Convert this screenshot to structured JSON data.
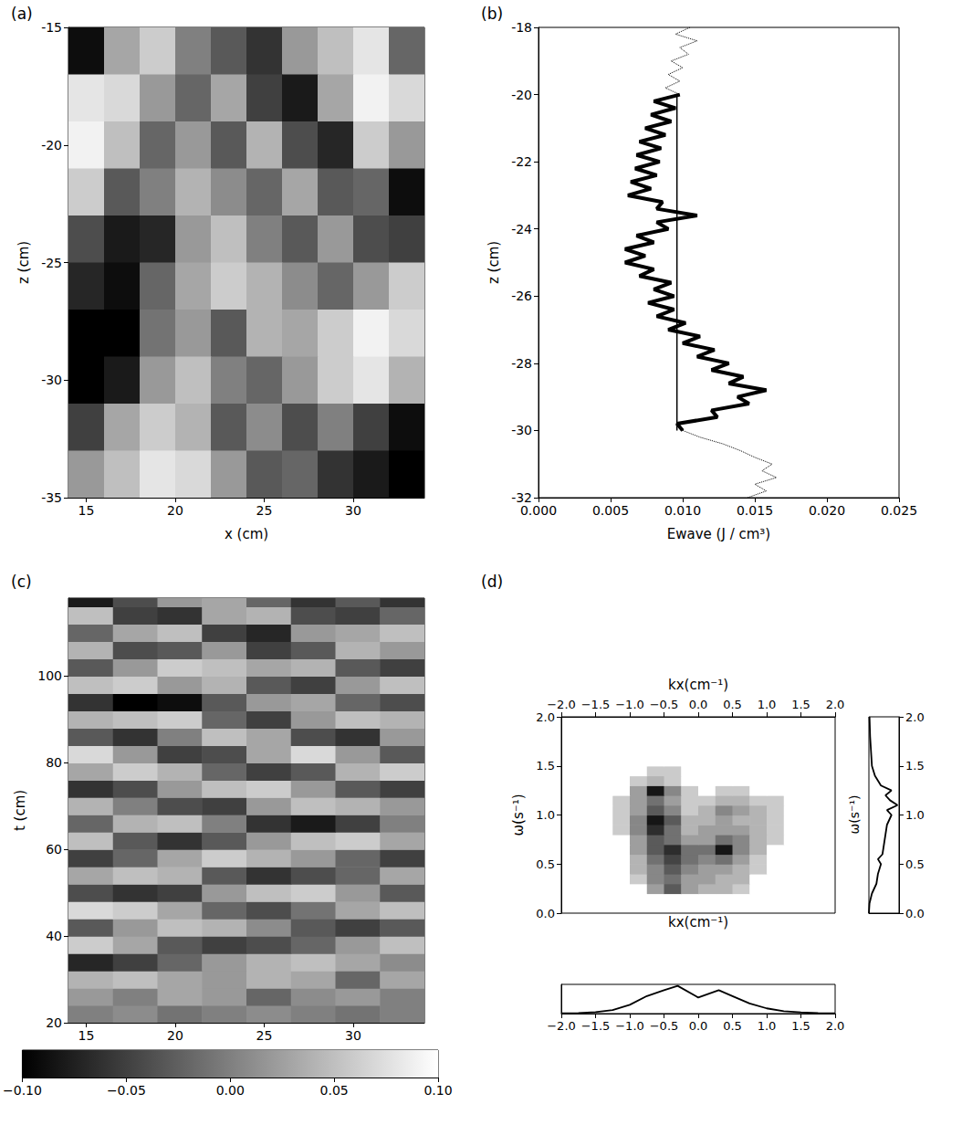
{
  "chart_data": [
    {
      "type": "heatmap",
      "title": "(a)",
      "xlabel": "x (cm)",
      "ylabel": "z (cm)",
      "xlim": [
        14,
        34
      ],
      "ylim": [
        -35,
        -15
      ],
      "xticks": [
        15,
        20,
        25,
        30
      ],
      "yticks": [
        -35,
        -30,
        -25,
        -20,
        -15
      ],
      "zlim": [
        -0.1,
        0.1
      ],
      "x_edges": [
        14,
        16,
        18,
        20,
        22,
        24,
        26,
        28,
        30,
        32,
        34
      ],
      "y_edges": [
        -15,
        -17,
        -19,
        -21,
        -23,
        -25,
        -27,
        -29,
        -31,
        -33,
        -35
      ],
      "values": [
        [
          -0.09,
          0.03,
          0.06,
          0.0,
          -0.03,
          -0.06,
          0.02,
          0.05,
          0.08,
          -0.02
        ],
        [
          0.08,
          0.07,
          0.02,
          -0.02,
          0.03,
          -0.05,
          -0.08,
          0.03,
          0.09,
          0.07
        ],
        [
          0.09,
          0.05,
          -0.02,
          0.02,
          -0.03,
          0.04,
          -0.04,
          -0.07,
          0.06,
          0.02
        ],
        [
          0.06,
          -0.03,
          0.0,
          0.04,
          0.01,
          -0.02,
          0.03,
          -0.03,
          -0.02,
          -0.09
        ],
        [
          -0.04,
          -0.08,
          -0.07,
          0.02,
          0.05,
          0.0,
          -0.03,
          0.02,
          -0.04,
          -0.05
        ],
        [
          -0.07,
          -0.09,
          -0.02,
          0.03,
          0.06,
          0.04,
          0.01,
          -0.02,
          0.02,
          0.06
        ],
        [
          -0.1,
          -0.1,
          -0.01,
          0.02,
          -0.03,
          0.04,
          0.03,
          0.06,
          0.09,
          0.07
        ],
        [
          -0.1,
          -0.08,
          0.02,
          0.05,
          0.0,
          -0.02,
          0.02,
          0.06,
          0.08,
          0.04
        ],
        [
          -0.05,
          0.03,
          0.06,
          0.04,
          -0.03,
          0.01,
          -0.04,
          0.0,
          -0.05,
          -0.09
        ],
        [
          0.02,
          0.05,
          0.08,
          0.07,
          0.02,
          -0.03,
          -0.02,
          -0.06,
          -0.08,
          -0.1
        ]
      ]
    },
    {
      "type": "line",
      "title": "(b)",
      "xlabel": "Ewave (J / cm³)",
      "ylabel": "z (cm)",
      "xlim": [
        0,
        0.025
      ],
      "ylim": [
        -32,
        -18
      ],
      "xticks": [
        {
          "value": 0,
          "label": "0.000"
        },
        {
          "value": 0.005,
          "label": "0.005"
        },
        {
          "value": 0.01,
          "label": "0.010"
        },
        {
          "value": 0.015,
          "label": "0.015"
        },
        {
          "value": 0.02,
          "label": "0.020"
        },
        {
          "value": 0.025,
          "label": "0.025"
        }
      ],
      "yticks": [
        -32,
        -30,
        -28,
        -26,
        -24,
        -22,
        -20,
        -18
      ],
      "series": [
        {
          "color": "#000000",
          "line_style": "solid",
          "x": [
            0.0098,
            0.008,
            0.0095,
            0.0078,
            0.0092,
            0.0074,
            0.0088,
            0.007,
            0.0085,
            0.0068,
            0.0084,
            0.0067,
            0.0082,
            0.0064,
            0.0078,
            0.0062,
            0.0086,
            0.0082,
            0.011,
            0.0082,
            0.009,
            0.0068,
            0.008,
            0.006,
            0.0074,
            0.006,
            0.008,
            0.007,
            0.0092,
            0.008,
            0.0094,
            0.0076,
            0.0094,
            0.0082,
            0.0102,
            0.009,
            0.0112,
            0.01,
            0.0122,
            0.011,
            0.0132,
            0.012,
            0.0142,
            0.0132,
            0.0158,
            0.0138,
            0.0146,
            0.012,
            0.0124,
            0.0096,
            0.01
          ],
          "y": [
            -20.0,
            -20.2,
            -20.4,
            -20.6,
            -20.8,
            -21.0,
            -21.2,
            -21.4,
            -21.6,
            -21.8,
            -22.0,
            -22.2,
            -22.4,
            -22.6,
            -22.8,
            -23.0,
            -23.2,
            -23.4,
            -23.6,
            -23.8,
            -24.0,
            -24.2,
            -24.4,
            -24.6,
            -24.8,
            -25.0,
            -25.2,
            -25.4,
            -25.6,
            -25.8,
            -26.0,
            -26.2,
            -26.4,
            -26.6,
            -26.8,
            -27.0,
            -27.2,
            -27.4,
            -27.6,
            -27.8,
            -28.0,
            -28.2,
            -28.4,
            -28.6,
            -28.8,
            -29.0,
            -29.2,
            -29.4,
            -29.6,
            -29.8,
            -30.0
          ]
        },
        {
          "color": "#000000",
          "line_style": "solid",
          "x": [
            0.0096,
            0.0096
          ],
          "y": [
            -30,
            -20
          ]
        },
        {
          "color": "#000000",
          "line_style": "dotted",
          "x": [
            0.0105,
            0.0095,
            0.011,
            0.0098,
            0.0104,
            0.0092,
            0.01,
            0.009,
            0.0098,
            0.0088,
            0.0098
          ],
          "y": [
            -18.0,
            -18.2,
            -18.4,
            -18.6,
            -18.8,
            -19.0,
            -19.2,
            -19.4,
            -19.6,
            -19.8,
            -20.0
          ]
        },
        {
          "color": "#000000",
          "line_style": "dotted",
          "x": [
            0.01,
            0.0112,
            0.0128,
            0.014,
            0.015,
            0.0162,
            0.0155,
            0.0165,
            0.015,
            0.0158,
            0.0145
          ],
          "y": [
            -30.0,
            -30.2,
            -30.4,
            -30.6,
            -30.8,
            -31.0,
            -31.2,
            -31.4,
            -31.6,
            -31.8,
            -32.0
          ]
        }
      ]
    },
    {
      "type": "heatmap",
      "title": "(c)",
      "ylabel": "t (cm)",
      "xlim": [
        14,
        34
      ],
      "ylim": [
        20,
        118
      ],
      "xticks": [
        15,
        20,
        25,
        30
      ],
      "yticks": [
        20,
        40,
        60,
        80,
        100
      ],
      "zlim": [
        -0.1,
        0.1
      ],
      "colorbar": {
        "range": [
          -0.1,
          0.1
        ],
        "ticks": [
          {
            "value": -0.1,
            "label": "−0.10"
          },
          {
            "value": -0.05,
            "label": "−0.05"
          },
          {
            "value": 0,
            "label": "0.00"
          },
          {
            "value": 0.05,
            "label": "0.05"
          },
          {
            "value": 0.1,
            "label": "0.10"
          }
        ]
      },
      "x_edges": [
        14,
        16.5,
        19,
        21.5,
        24,
        26.5,
        29,
        31.5,
        34
      ],
      "y_edges": [
        20,
        24,
        28,
        32,
        36,
        40,
        44,
        48,
        52,
        56,
        60,
        64,
        68,
        72,
        76,
        80,
        84,
        88,
        92,
        96,
        100,
        104,
        108,
        112,
        116,
        118
      ],
      "values": [
        [
          0.0,
          0.01,
          -0.01,
          0.0,
          0.01,
          0.0,
          -0.01,
          0.0
        ],
        [
          0.02,
          0.0,
          0.03,
          0.02,
          -0.02,
          0.01,
          0.02,
          0.0
        ],
        [
          0.04,
          0.05,
          0.03,
          0.02,
          0.04,
          0.03,
          -0.02,
          0.03
        ],
        [
          -0.07,
          -0.05,
          -0.02,
          0.02,
          0.04,
          0.05,
          0.03,
          0.01
        ],
        [
          0.06,
          0.03,
          -0.03,
          -0.05,
          -0.04,
          -0.02,
          0.02,
          0.05
        ],
        [
          -0.03,
          0.02,
          0.05,
          0.04,
          0.01,
          -0.03,
          -0.05,
          -0.03
        ],
        [
          0.07,
          0.06,
          0.03,
          -0.02,
          -0.04,
          -0.01,
          0.03,
          0.05
        ],
        [
          -0.04,
          -0.06,
          -0.05,
          0.02,
          0.05,
          0.06,
          0.02,
          -0.03
        ],
        [
          0.03,
          0.05,
          0.04,
          -0.03,
          -0.06,
          -0.04,
          -0.02,
          0.03
        ],
        [
          -0.05,
          -0.02,
          0.03,
          0.06,
          0.04,
          0.02,
          -0.02,
          -0.05
        ],
        [
          0.05,
          -0.03,
          -0.06,
          -0.03,
          0.02,
          0.05,
          0.06,
          0.03
        ],
        [
          -0.02,
          0.04,
          0.05,
          0.0,
          -0.06,
          -0.08,
          -0.05,
          0.0
        ],
        [
          0.04,
          0.0,
          -0.04,
          -0.05,
          0.02,
          0.05,
          0.04,
          0.02
        ],
        [
          -0.06,
          -0.04,
          0.02,
          0.05,
          0.06,
          0.02,
          -0.03,
          -0.05
        ],
        [
          0.03,
          0.06,
          0.04,
          -0.02,
          -0.05,
          -0.03,
          0.04,
          0.06
        ],
        [
          0.07,
          0.02,
          -0.05,
          -0.04,
          0.03,
          0.07,
          0.02,
          -0.03
        ],
        [
          -0.03,
          -0.06,
          0.0,
          0.05,
          0.03,
          -0.04,
          -0.06,
          0.02
        ],
        [
          0.04,
          0.05,
          0.06,
          -0.02,
          -0.05,
          0.02,
          0.05,
          0.04
        ],
        [
          -0.06,
          -0.1,
          -0.09,
          -0.03,
          0.02,
          0.03,
          -0.02,
          -0.04
        ],
        [
          0.05,
          0.06,
          0.02,
          0.04,
          -0.03,
          -0.05,
          0.02,
          0.05
        ],
        [
          -0.03,
          0.02,
          0.06,
          0.05,
          0.03,
          0.04,
          -0.03,
          -0.05
        ],
        [
          0.04,
          -0.04,
          -0.03,
          0.02,
          -0.05,
          -0.03,
          0.04,
          0.02
        ],
        [
          -0.02,
          0.03,
          0.05,
          -0.05,
          -0.07,
          0.02,
          0.03,
          0.05
        ],
        [
          0.05,
          -0.05,
          -0.06,
          0.03,
          0.04,
          -0.04,
          -0.05,
          -0.02
        ],
        [
          -0.08,
          -0.04,
          0.02,
          0.03,
          -0.02,
          -0.06,
          -0.03,
          -0.06
        ]
      ]
    },
    {
      "type": "contour",
      "title": "(d)",
      "xlabel": "kx(cm⁻¹)",
      "ylabel": "ω(s⁻¹)",
      "xlim": [
        -2,
        2
      ],
      "ylim": [
        0,
        2
      ],
      "xticks": [
        {
          "value": -2,
          "label": "−2.0"
        },
        {
          "value": -1.5,
          "label": "−1.5"
        },
        {
          "value": -1,
          "label": "−1.0"
        },
        {
          "value": -0.5,
          "label": "−0.5"
        },
        {
          "value": 0,
          "label": "0.0"
        },
        {
          "value": 0.5,
          "label": "0.5"
        },
        {
          "value": 1,
          "label": "1.0"
        },
        {
          "value": 1.5,
          "label": "1.5"
        },
        {
          "value": 2,
          "label": "2.0"
        }
      ],
      "yticks": [
        {
          "value": 0,
          "label": "0.0"
        },
        {
          "value": 0.5,
          "label": "0.5"
        },
        {
          "value": 1,
          "label": "1.0"
        },
        {
          "value": 1.5,
          "label": "1.5"
        },
        {
          "value": 2,
          "label": "2.0"
        }
      ],
      "zlim": [
        0,
        1
      ],
      "x_edges": [
        -1.5,
        -1.25,
        -1.0,
        -0.75,
        -0.5,
        -0.25,
        0,
        0.25,
        0.5,
        0.75,
        1.0,
        1.25,
        1.5
      ],
      "y_edges": [
        0.1,
        0.2,
        0.3,
        0.4,
        0.5,
        0.6,
        0.7,
        0.8,
        0.9,
        1.0,
        1.1,
        1.2,
        1.3,
        1.4,
        1.5,
        1.6
      ],
      "values": [
        [
          0,
          0,
          0,
          0,
          0,
          0,
          0,
          0,
          0,
          0,
          0,
          0
        ],
        [
          0,
          0,
          0,
          0.3,
          0.6,
          0.3,
          0.2,
          0.2,
          0.1,
          0,
          0,
          0
        ],
        [
          0,
          0,
          0.1,
          0.4,
          0.5,
          0.3,
          0.3,
          0.2,
          0.2,
          0,
          0,
          0
        ],
        [
          0,
          0,
          0.2,
          0.4,
          0.6,
          0.4,
          0.3,
          0.3,
          0.2,
          0.1,
          0,
          0
        ],
        [
          0,
          0,
          0.2,
          0.5,
          0.7,
          0.5,
          0.4,
          0.5,
          0.3,
          0.1,
          0,
          0
        ],
        [
          0,
          0,
          0.3,
          0.6,
          0.8,
          0.5,
          0.5,
          0.9,
          0.4,
          0.2,
          0,
          0
        ],
        [
          0,
          0,
          0.3,
          0.6,
          0.5,
          0.3,
          0.3,
          0.5,
          0.4,
          0.2,
          0.1,
          0
        ],
        [
          0,
          0.1,
          0.4,
          0.8,
          0.5,
          0.2,
          0.3,
          0.3,
          0.3,
          0.2,
          0.1,
          0
        ],
        [
          0,
          0.1,
          0.4,
          0.9,
          0.6,
          0.2,
          0.2,
          0.3,
          0.2,
          0.2,
          0.1,
          0
        ],
        [
          0,
          0.1,
          0.3,
          0.6,
          0.4,
          0.1,
          0.2,
          0.4,
          0.3,
          0.2,
          0.1,
          0
        ],
        [
          0,
          0.1,
          0.3,
          0.5,
          0.3,
          0.1,
          0.1,
          0.2,
          0.2,
          0.1,
          0.1,
          0
        ],
        [
          0,
          0,
          0.3,
          0.9,
          0.4,
          0.1,
          0,
          0.1,
          0.1,
          0,
          0,
          0
        ],
        [
          0,
          0,
          0.1,
          0.2,
          0.1,
          0,
          0,
          0,
          0,
          0,
          0,
          0
        ],
        [
          0,
          0,
          0,
          0.1,
          0.1,
          0,
          0,
          0,
          0,
          0,
          0,
          0
        ],
        [
          0,
          0,
          0,
          0,
          0,
          0,
          0,
          0,
          0,
          0,
          0,
          0
        ]
      ]
    },
    {
      "type": "line",
      "ylabel": "ω(s⁻¹)",
      "tick_labels": "y",
      "xlim": [
        0,
        1
      ],
      "ylim": [
        0,
        2
      ],
      "yticks": [
        {
          "value": 0,
          "label": "0.0"
        },
        {
          "value": 0.5,
          "label": "0.5"
        },
        {
          "value": 1,
          "label": "1.0"
        },
        {
          "value": 1.5,
          "label": "1.5"
        },
        {
          "value": 2,
          "label": "2.0"
        }
      ],
      "series": [
        {
          "color": "#000000",
          "line_style": "solid",
          "x": [
            0,
            0.02,
            0.1,
            0.25,
            0.3,
            0.4,
            0.3,
            0.45,
            0.5,
            0.55,
            0.6,
            0.75,
            0.6,
            0.95,
            0.7,
            0.55,
            0.75,
            0.4,
            0.2,
            0.1,
            0.08,
            0.04,
            0.02
          ],
          "y": [
            0,
            0.1,
            0.2,
            0.3,
            0.4,
            0.5,
            0.55,
            0.6,
            0.7,
            0.8,
            0.9,
            1.0,
            1.05,
            1.1,
            1.15,
            1.2,
            1.25,
            1.3,
            1.4,
            1.5,
            1.6,
            1.8,
            2.0
          ]
        }
      ]
    },
    {
      "type": "line",
      "xlabel": "kx(cm⁻¹)",
      "tick_labels": "x",
      "xlim": [
        -2,
        2
      ],
      "ylim": [
        0,
        1
      ],
      "xticks": [
        {
          "value": -2,
          "label": "−2.0"
        },
        {
          "value": -1.5,
          "label": "−1.5"
        },
        {
          "value": -1,
          "label": "−1.0"
        },
        {
          "value": -0.5,
          "label": "−0.5"
        },
        {
          "value": 0,
          "label": "0.0"
        },
        {
          "value": 0.5,
          "label": "0.5"
        },
        {
          "value": 1,
          "label": "1.0"
        },
        {
          "value": 1.5,
          "label": "1.5"
        },
        {
          "value": 2,
          "label": "2.0"
        }
      ],
      "series": [
        {
          "color": "#000000",
          "line_style": "solid",
          "x": [
            -2,
            -1.75,
            -1.5,
            -1.25,
            -1,
            -0.75,
            -0.5,
            -0.3,
            0,
            0.3,
            0.5,
            0.75,
            1,
            1.25,
            1.5,
            1.75,
            2
          ],
          "y": [
            0.01,
            0.02,
            0.05,
            0.12,
            0.3,
            0.6,
            0.8,
            0.95,
            0.55,
            0.8,
            0.6,
            0.35,
            0.18,
            0.08,
            0.04,
            0.02,
            0.01
          ]
        }
      ]
    }
  ]
}
